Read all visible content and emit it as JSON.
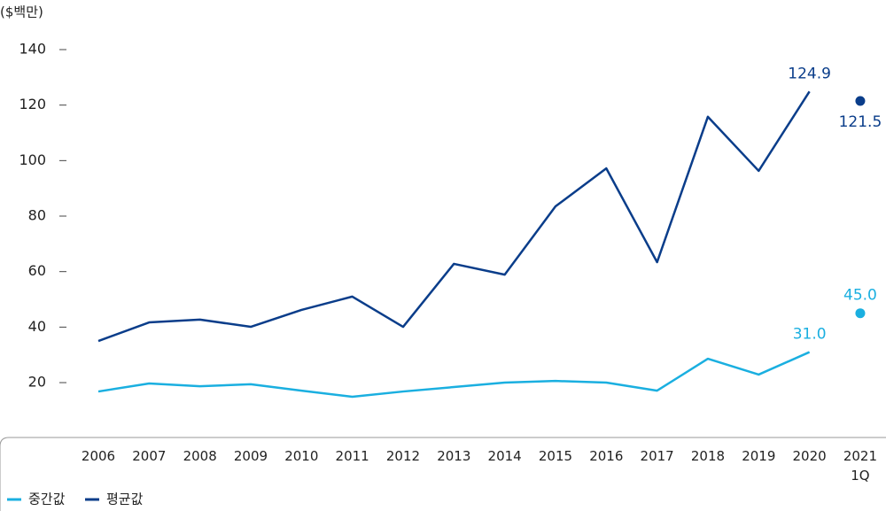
{
  "chart_data": {
    "type": "line",
    "y_axis_label": "($백만)",
    "categories": [
      "2006",
      "2007",
      "2008",
      "2009",
      "2010",
      "2011",
      "2012",
      "2013",
      "2014",
      "2015",
      "2016",
      "2017",
      "2018",
      "2019",
      "2020",
      "2021\n1Q"
    ],
    "series": [
      {
        "name": "중간값",
        "color": "#1aafe0",
        "values": [
          16.8,
          19.7,
          18.7,
          19.4,
          17.1,
          14.9,
          16.8,
          18.4,
          20.0,
          20.6,
          20.0,
          17.1,
          28.6,
          22.9,
          31.0,
          45.0
        ],
        "value_labels": [
          null,
          null,
          null,
          null,
          null,
          null,
          null,
          null,
          null,
          null,
          null,
          null,
          null,
          null,
          "31.0",
          "45.0"
        ]
      },
      {
        "name": "평균값",
        "color": "#0a3d8a",
        "values": [
          35.0,
          41.7,
          42.7,
          40.1,
          46.2,
          51.0,
          40.1,
          62.8,
          58.9,
          83.5,
          97.2,
          63.4,
          115.8,
          96.3,
          124.9,
          121.5
        ],
        "value_labels": [
          null,
          null,
          null,
          null,
          null,
          null,
          null,
          null,
          null,
          null,
          null,
          null,
          null,
          null,
          "124.9",
          "121.5"
        ]
      }
    ],
    "ylim": [
      0,
      140
    ],
    "yticks": [
      20,
      40,
      60,
      80,
      100,
      120,
      140
    ],
    "legend": "bottom-left"
  }
}
